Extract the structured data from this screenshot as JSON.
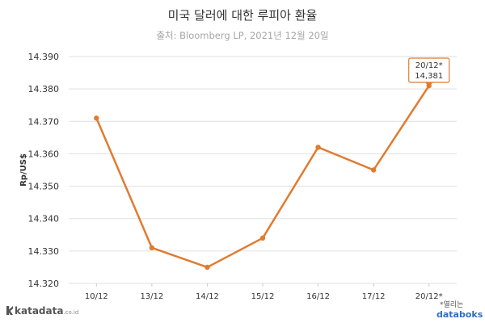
{
  "title": "미국 달러에 대한 루피아 환율",
  "subtitle": "출처: Bloomberg LP, 2021년 12월 20일",
  "brand": {
    "name": "katadata",
    "suffix": ".co.id"
  },
  "footnote": "*열리는",
  "databoks": "databoks",
  "colors": {
    "line": "#E07B30",
    "grid": "#e0e0e0",
    "annotation_border": "#E07B30"
  },
  "chart_data": {
    "type": "line",
    "ylabel": "Rp/US$",
    "categories": [
      "10/12",
      "13/12",
      "14/12",
      "15/12",
      "16/12",
      "17/12",
      "20/12*"
    ],
    "values": [
      14371,
      14331,
      14325,
      14334,
      14362,
      14355,
      14381
    ],
    "ylim": [
      14320,
      14390
    ],
    "yticks": [
      "14.320",
      "14.330",
      "14.340",
      "14.350",
      "14.360",
      "14.370",
      "14.380",
      "14.390"
    ],
    "ytick_values": [
      14320,
      14330,
      14340,
      14350,
      14360,
      14370,
      14380,
      14390
    ],
    "grid": true,
    "annotation": {
      "index": 6,
      "line1": "20/12*",
      "line2": "14,381"
    }
  }
}
